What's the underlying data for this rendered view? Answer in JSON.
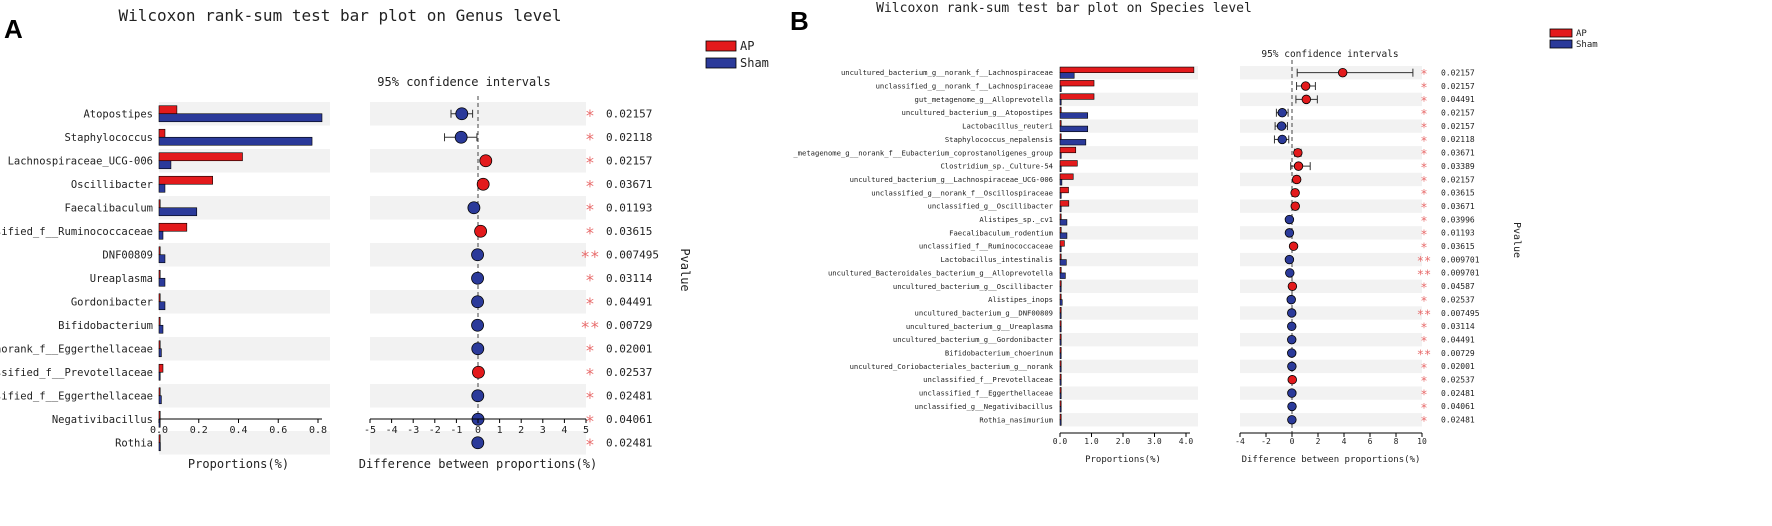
{
  "chart_data": [
    {
      "panel_label": "A",
      "type": "bar",
      "title": "Wilcoxon rank-sum test bar plot on Genus level",
      "legend": [
        "AP",
        "Sham"
      ],
      "legend_position": "top-right",
      "ci_title": "95% confidence intervals",
      "prop_xlabel": "Proportions(%)",
      "diff_xlabel": "Difference between proportions(%)",
      "pvalue_label": "Pvalue",
      "prop_xlim": [
        0,
        0.8
      ],
      "prop_ticks": [
        "0.0",
        "0.2",
        "0.4",
        "0.6",
        "0.8"
      ],
      "diff_xlim": [
        -5,
        5
      ],
      "diff_ticks": [
        "-5",
        "-4",
        "-3",
        "-2",
        "-1",
        "0",
        "1",
        "2",
        "3",
        "4",
        "5"
      ],
      "categories": [
        "Atopostipes",
        "Staphylococcus",
        "Lachnospiraceae_UCG-006",
        "Oscillibacter",
        "Faecalibaculum",
        "unclassified_f__Ruminococcaceae",
        "DNF00809",
        "Ureaplasma",
        "Gordonibacter",
        "Bifidobacterium",
        "norank_f__Eggerthellaceae",
        "unclassified_f__Prevotellaceae",
        "unclassified_f__Eggerthellaceae",
        "Negativibacillus",
        "Rothia"
      ],
      "series": [
        {
          "name": "AP",
          "color": "#e31a1c",
          "values": [
            0.09,
            0.03,
            0.42,
            0.27,
            0.003,
            0.14,
            0.004,
            0.003,
            0.002,
            0.003,
            0.002,
            0.02,
            0.001,
            0.003,
            0.002
          ]
        },
        {
          "name": "Sham",
          "color": "#2b3a9a",
          "values": [
            0.82,
            0.77,
            0.06,
            0.03,
            0.19,
            0.02,
            0.03,
            0.03,
            0.03,
            0.02,
            0.012,
            0.002,
            0.012,
            0.003,
            0.007
          ]
        }
      ],
      "difference": [
        -0.75,
        -0.78,
        0.36,
        0.24,
        -0.19,
        0.12,
        -0.02,
        -0.02,
        -0.02,
        -0.02,
        -0.01,
        0.02,
        -0.01,
        0.0,
        -0.01
      ],
      "ci_low": [
        -1.25,
        -1.55,
        0.2,
        0.1,
        -0.25,
        0.05,
        -0.05,
        -0.05,
        -0.05,
        -0.04,
        -0.03,
        0.0,
        -0.03,
        -0.02,
        -0.03
      ],
      "ci_high": [
        -0.25,
        -0.05,
        0.5,
        0.38,
        -0.12,
        0.2,
        0.0,
        0.0,
        0.0,
        0.0,
        0.0,
        0.04,
        0.0,
        0.02,
        0.0
      ],
      "significance": [
        "*",
        "*",
        "*",
        "*",
        "*",
        "*",
        "**",
        "*",
        "*",
        "**",
        "*",
        "*",
        "*",
        "*",
        "*"
      ],
      "pvalues": [
        "0.02157",
        "0.02118",
        "0.02157",
        "0.03671",
        "0.01193",
        "0.03615",
        "0.007495",
        "0.03114",
        "0.04491",
        "0.00729",
        "0.02001",
        "0.02537",
        "0.02481",
        "0.04061",
        "0.02481"
      ]
    },
    {
      "panel_label": "B",
      "type": "bar",
      "title": "Wilcoxon rank-sum test bar plot on Species level",
      "legend": [
        "AP",
        "Sham"
      ],
      "legend_position": "top-right",
      "ci_title": "95% confidence intervals",
      "prop_xlabel": "Proportions(%)",
      "diff_xlabel": "Difference between proportions(%)",
      "pvalue_label": "Pvalue",
      "prop_xlim": [
        0,
        4.0
      ],
      "prop_ticks": [
        "0.0",
        "1.0",
        "2.0",
        "3.0",
        "4.0"
      ],
      "diff_xlim": [
        -4,
        10
      ],
      "diff_ticks": [
        "-4",
        "-2",
        "0",
        "2",
        "4",
        "6",
        "8",
        "10"
      ],
      "categories": [
        "uncultured_bacterium_g__norank_f__Lachnospiraceae",
        "unclassified_g__norank_f__Lachnospiraceae",
        "gut_metagenome_g__Alloprevotella",
        "uncultured_bacterium_g__Atopostipes",
        "Lactobacillus_reuteri",
        "Staphylococcus_nepalensis",
        "_metagenome_g__norank_f__Eubacterium_coprostanoligenes_group",
        "Clostridium_sp._Culture-54",
        "uncultured_bacterium_g__Lachnospiraceae_UCG-006",
        "unclassified_g__norank_f__Oscillospiraceae",
        "unclassified_g__Oscillibacter",
        "Alistipes_sp._cv1",
        "Faecalibaculum_rodentium",
        "unclassified_f__Ruminococcaceae",
        "Lactobacillus_intestinalis",
        "uncultured_Bacteroidales_bacterium_g__Alloprevotella",
        "uncultured_bacterium_g__Oscillibacter",
        "Alistipes_inops",
        "uncultured_bacterium_g__DNF00809",
        "uncultured_bacterium_g__Ureaplasma",
        "uncultured_bacterium_g__Gordonibacter",
        "Bifidobacterium_choerinum",
        "uncultured_Coriobacteriales_bacterium_g__norank",
        "unclassified_f__Prevotellaceae",
        "unclassified_f__Eggerthellaceae",
        "unclassified_g__Negativibacillus",
        "Rothia_nasimurium"
      ],
      "series": [
        {
          "name": "AP",
          "color": "#e31a1c",
          "values": [
            4.25,
            1.08,
            1.08,
            0.02,
            0.02,
            0.02,
            0.5,
            0.55,
            0.42,
            0.27,
            0.28,
            0.01,
            0.01,
            0.14,
            0.01,
            0.01,
            0.04,
            0.01,
            0.004,
            0.003,
            0.002,
            0.003,
            0.002,
            0.02,
            0.001,
            0.003,
            0.002
          ]
        },
        {
          "name": "Sham",
          "color": "#2b3a9a",
          "values": [
            0.45,
            0.04,
            0.03,
            0.88,
            0.88,
            0.82,
            0.02,
            0.03,
            0.06,
            0.03,
            0.03,
            0.22,
            0.22,
            0.02,
            0.2,
            0.17,
            0.01,
            0.07,
            0.03,
            0.03,
            0.03,
            0.02,
            0.012,
            0.002,
            0.012,
            0.003,
            0.007
          ]
        }
      ],
      "difference": [
        3.9,
        1.05,
        1.1,
        -0.75,
        -0.8,
        -0.75,
        0.45,
        0.5,
        0.36,
        0.24,
        0.25,
        -0.2,
        -0.2,
        0.12,
        -0.2,
        -0.17,
        0.03,
        -0.06,
        -0.02,
        -0.02,
        -0.02,
        -0.02,
        -0.01,
        0.02,
        -0.01,
        0.0,
        -0.01
      ],
      "ci_low": [
        0.4,
        0.35,
        0.3,
        -1.2,
        -1.3,
        -1.35,
        0.2,
        -0.1,
        0.15,
        0.1,
        0.1,
        -0.35,
        -0.35,
        0.05,
        -0.35,
        -0.3,
        0.0,
        -0.12,
        -0.05,
        -0.05,
        -0.05,
        -0.04,
        -0.03,
        0.0,
        -0.03,
        -0.02,
        -0.03
      ],
      "ci_high": [
        9.3,
        1.8,
        1.95,
        -0.3,
        -0.35,
        -0.25,
        0.7,
        1.4,
        0.55,
        0.4,
        0.45,
        -0.08,
        -0.08,
        0.2,
        -0.08,
        -0.05,
        0.06,
        0.0,
        0.0,
        0.0,
        0.0,
        0.0,
        0.0,
        0.04,
        0.0,
        0.02,
        0.0
      ],
      "significance": [
        "*",
        "*",
        "*",
        "*",
        "*",
        "*",
        "*",
        "*",
        "*",
        "*",
        "*",
        "*",
        "*",
        "*",
        "**",
        "**",
        "*",
        "*",
        "**",
        "*",
        "*",
        "**",
        "*",
        "*",
        "*",
        "*",
        "*"
      ],
      "pvalues": [
        "0.02157",
        "0.02157",
        "0.04491",
        "0.02157",
        "0.02157",
        "0.02118",
        "0.03671",
        "0.03389",
        "0.02157",
        "0.03615",
        "0.03671",
        "0.03996",
        "0.01193",
        "0.03615",
        "0.009701",
        "0.009701",
        "0.04587",
        "0.02537",
        "0.007495",
        "0.03114",
        "0.04491",
        "0.00729",
        "0.02001",
        "0.02537",
        "0.02481",
        "0.04061",
        "0.02481"
      ]
    }
  ]
}
